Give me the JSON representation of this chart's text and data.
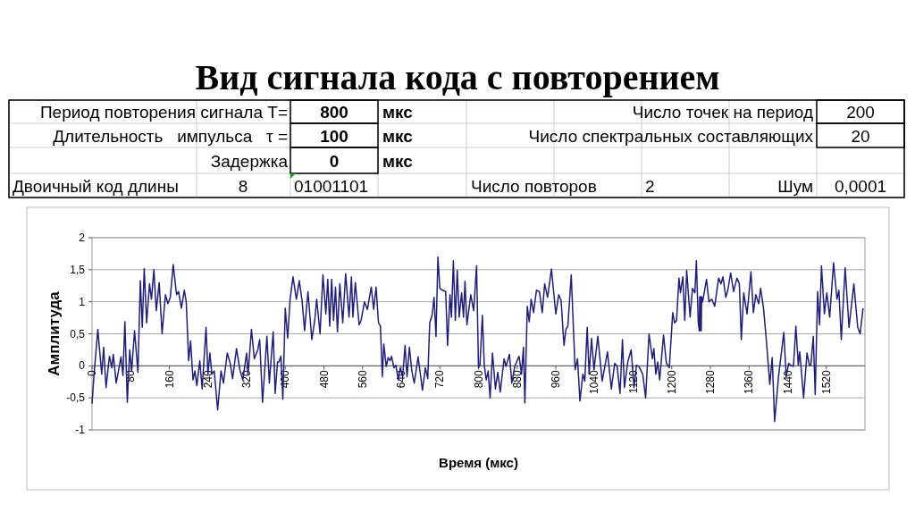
{
  "chart_data": {
    "type": "line",
    "title": "Вид сигнала кода с повторением",
    "xlabel": "Время (мкс)",
    "ylabel": "Амплитуда",
    "annotations": [
      "Период повторения сигнала T=",
      "800",
      "мкс",
      "Число точек на период",
      "200",
      "Длительность   импульса   τ =",
      "100",
      "мкс",
      "Число спектральных составляющих",
      "20",
      "Задержка",
      "0",
      "мкс",
      "Двоичный код длины",
      "8",
      "01001101",
      "Число повторов",
      "2",
      "Шум",
      "0,0001"
    ],
    "xlim": [
      0,
      1600
    ],
    "xticks": [
      0,
      80,
      160,
      240,
      320,
      400,
      480,
      560,
      640,
      720,
      800,
      880,
      960,
      1040,
      1120,
      1200,
      1280,
      1360,
      1440,
      1520
    ],
    "ylim": [
      -1,
      2
    ],
    "yticks": [
      {
        "value": -1,
        "label": "-1"
      },
      {
        "value": -0.5,
        "label": "-0,5"
      },
      0,
      {
        "value": 0.5,
        "label": "0,5"
      },
      1,
      {
        "value": 1.5,
        "label": "1,5"
      },
      2
    ],
    "grid": "y",
    "marker": "none",
    "line_style": "solid",
    "series": [
      {
        "color": "#1f1f7a",
        "x": [
          0,
          4,
          12,
          20,
          24,
          29,
          36,
          41,
          44,
          50,
          60,
          64,
          68,
          73,
          78,
          82,
          88,
          95,
          100,
          104,
          108,
          113,
          119,
          123,
          128,
          133,
          139,
          145,
          152,
          157,
          162,
          168,
          175,
          179,
          185,
          191,
          195,
          200,
          204,
          209,
          213,
          217,
          223,
          228,
          236,
          240,
          244,
          248,
          253,
          260,
          267,
          272,
          280,
          286,
          291,
          299,
          306,
          312,
          320,
          323,
          330,
          336,
          343,
          347,
          353,
          362,
          367,
          375,
          379,
          384,
          387,
          391,
          395,
          400,
          405,
          410,
          416,
          423,
          429,
          435,
          440,
          447,
          455,
          461,
          465,
          472,
          478,
          484,
          488,
          492,
          496,
          500,
          504,
          508,
          513,
          519,
          525,
          532,
          537,
          540,
          545,
          553,
          557,
          564,
          570,
          578,
          583,
          588,
          593,
          597,
          601,
          604,
          609,
          613,
          617,
          620,
          625,
          629,
          634,
          638,
          643,
          648,
          652,
          657,
          662,
          667,
          675,
          684,
          690,
          695,
          699,
          704,
          708,
          712,
          716,
          720,
          726,
          732,
          736,
          741,
          744,
          748,
          752,
          756,
          760,
          765,
          769,
          772,
          776,
          784,
          790,
          796,
          800,
          803,
          808,
          812,
          816,
          820,
          824,
          829,
          835,
          840,
          845,
          853,
          857,
          864,
          869,
          875,
          884,
          889,
          893,
          896,
          901,
          905,
          909,
          914,
          920,
          926,
          932,
          937,
          943,
          951,
          960,
          966,
          971,
          977,
          981,
          985,
          992,
          1000,
          1005,
          1010,
          1016,
          1020,
          1025,
          1029,
          1034,
          1039,
          1047,
          1056,
          1067,
          1075,
          1082,
          1087,
          1093,
          1098,
          1102,
          1109,
          1116,
          1122,
          1127,
          1132,
          1140,
          1146,
          1153,
          1160,
          1163,
          1167,
          1171,
          1175,
          1183,
          1189,
          1195,
          1202,
          1206,
          1210,
          1215,
          1218,
          1223,
          1227,
          1231,
          1238,
          1243,
          1248,
          1251,
          1255,
          1257,
          1258,
          1259,
          1260,
          1261,
          1262,
          1264,
          1272,
          1277,
          1283,
          1289,
          1297,
          1302,
          1306,
          1312,
          1316,
          1322,
          1328,
          1335,
          1340,
          1344,
          1349,
          1356,
          1364,
          1369,
          1374,
          1380,
          1384,
          1390,
          1396,
          1403,
          1408,
          1413,
          1421,
          1432,
          1437,
          1442,
          1446,
          1452,
          1457,
          1462,
          1465,
          1473,
          1480,
          1485,
          1488,
          1493,
          1497,
          1502,
          1506,
          1510,
          1516,
          1521,
          1527,
          1535,
          1542,
          1546,
          1551,
          1559,
          1567,
          1577,
          1585,
          1590,
          1596
        ],
        "values": [
          -0.59,
          -0.15,
          0.57,
          -0.13,
          0.29,
          -0.34,
          0.15,
          -0.03,
          0.18,
          -0.27,
          0.14,
          -0.15,
          0.69,
          -0.57,
          0.25,
          -0.08,
          0.55,
          -0.1,
          1.33,
          0.6,
          1.52,
          0.67,
          1.28,
          1.04,
          1.5,
          0.86,
          1.3,
          0.5,
          1.11,
          0.97,
          1.07,
          1.58,
          1.11,
          1.16,
          0.9,
          1.18,
          1.0,
          0.08,
          0.39,
          -0.22,
          -0.08,
          -0.31,
          0.08,
          -0.36,
          0.6,
          -0.13,
          0.2,
          -0.13,
          -0.08,
          -0.69,
          -0.08,
          -0.27,
          0.2,
          0.04,
          -0.2,
          0.27,
          -0.06,
          -0.22,
          0.2,
          -0.13,
          0.57,
          0.11,
          0.25,
          0.41,
          -0.57,
          0.46,
          -0.27,
          0.53,
          -0.43,
          0.06,
          0.06,
          0.15,
          -0.52,
          0.9,
          0.43,
          1.04,
          1.39,
          1.04,
          1.33,
          1.0,
          0.55,
          1.16,
          0.41,
          0.71,
          1.04,
          0.5,
          1.42,
          0.81,
          1.35,
          0.62,
          1.35,
          0.71,
          1.23,
          0.53,
          1.28,
          0.67,
          1.44,
          0.76,
          1.39,
          0.76,
          1.3,
          0.64,
          0.71,
          1.0,
          0.88,
          1.23,
          0.88,
          1.23,
          0.67,
          0.62,
          -0.17,
          0.34,
          -0.01,
          0.13,
          0.08,
          0.15,
          -0.03,
          0.01,
          -0.22,
          -0.03,
          -0.17,
          0.32,
          -0.17,
          0.29,
          -0.08,
          -0.27,
          0.14,
          -0.38,
          -0.03,
          -0.2,
          0.67,
          0.79,
          1.07,
          0.46,
          1.7,
          1.21,
          1.18,
          1.16,
          0.32,
          1.11,
          0.76,
          1.64,
          0.71,
          1.49,
          0.76,
          1.14,
          0.76,
          1.32,
          0.64,
          1.11,
          0.86,
          1.56,
          -0.03,
          0.01,
          0.79,
          0.01,
          -0.22,
          -0.08,
          -0.5,
          0.2,
          -0.36,
          -0.1,
          -0.41,
          0.11,
          -0.01,
          0.18,
          -0.27,
          -0.01,
          0.15,
          -0.13,
          0.29,
          -0.58,
          0.93,
          0.69,
          1.04,
          0.83,
          1.18,
          1.16,
          0.83,
          1.28,
          1.07,
          1.51,
          0.81,
          1.11,
          1.02,
          0.32,
          0.57,
          0.62,
          1.42,
          -0.06,
          0.11,
          -0.55,
          -0.13,
          -0.24,
          0.6,
          -0.13,
          0.43,
          -0.06,
          0.46,
          -0.24,
          0.22,
          -0.36,
          0.04,
          -0.01,
          -0.43,
          0.41,
          -0.34,
          0.06,
          0.25,
          -0.34,
          0.01,
          -0.01,
          -0.13,
          -0.5,
          0.5,
          0.11,
          0.27,
          -0.13,
          0.06,
          -0.22,
          0.48,
          0.04,
          -0.03,
          0.83,
          0.67,
          0.71,
          1.37,
          1.14,
          1.39,
          0.71,
          1.49,
          0.76,
          1.21,
          1.14,
          1.64,
          0.67,
          0.55,
          1.08,
          0.55,
          1.08,
          0.55,
          1.08,
          1.0,
          1.35,
          1.0,
          1.04,
          0.93,
          1.37,
          1.28,
          1.39,
          1.07,
          1.18,
          1.45,
          1.16,
          1.37,
          1.28,
          0.41,
          1.14,
          0.81,
          1.47,
          0.83,
          1.11,
          0.97,
          1.21,
          0.9,
          0.39,
          -0.29,
          0.13,
          -0.87,
          -0.17,
          0.52,
          -0.17,
          0.04,
          0.01,
          -0.01,
          0.62,
          0.01,
          0.22,
          -0.5,
          0.2,
          0.01,
          0.01,
          0.46,
          -0.45,
          1.16,
          0.64,
          1.56,
          0.81,
          1.14,
          0.76,
          1.61,
          1.04,
          1.18,
          0.41,
          1.53,
          0.6,
          1.28,
          0.6,
          0.5,
          0.9
        ]
      }
    ]
  }
}
